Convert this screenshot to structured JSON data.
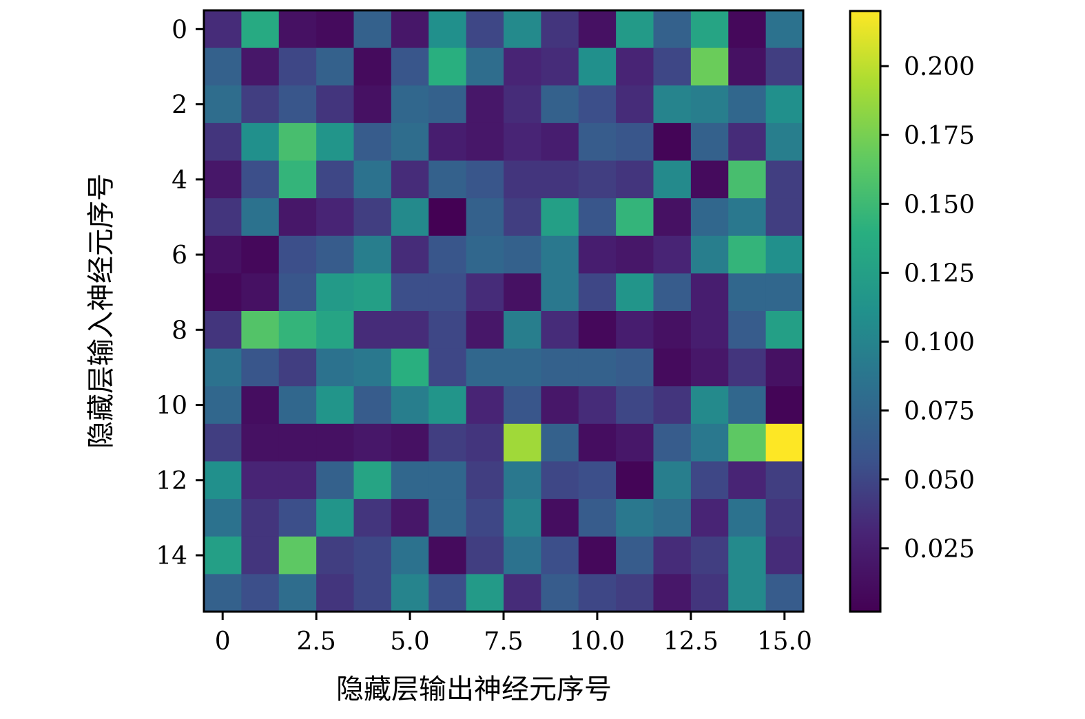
{
  "chart_data": {
    "type": "heatmap",
    "xlabel": "隐藏层输出神经元序号",
    "ylabel": "隐藏层输入神经元序号",
    "x_ticks": [
      0,
      2.5,
      5.0,
      7.5,
      10.0,
      12.5,
      15.0
    ],
    "x_tick_labels": [
      "0",
      "2.5",
      "5.0",
      "7.5",
      "10.0",
      "12.5",
      "15.0"
    ],
    "y_ticks": [
      0,
      2,
      4,
      6,
      8,
      10,
      12,
      14
    ],
    "y_tick_labels": [
      "0",
      "2",
      "4",
      "6",
      "8",
      "10",
      "12",
      "14"
    ],
    "xlim": [
      -0.5,
      15.5
    ],
    "ylim": [
      15.5,
      -0.5
    ],
    "colormap": "viridis",
    "colorbar": {
      "min": 0.002,
      "max": 0.22,
      "ticks": [
        0.025,
        0.05,
        0.075,
        0.1,
        0.125,
        0.15,
        0.175,
        0.2
      ],
      "tick_labels": [
        "0.025",
        "0.050",
        "0.075",
        "0.100",
        "0.125",
        "0.150",
        "0.175",
        "0.200"
      ]
    },
    "values": [
      [
        0.035,
        0.135,
        0.015,
        0.01,
        0.07,
        0.02,
        0.11,
        0.05,
        0.105,
        0.04,
        0.015,
        0.12,
        0.07,
        0.13,
        0.008,
        0.085
      ],
      [
        0.07,
        0.02,
        0.05,
        0.07,
        0.01,
        0.06,
        0.14,
        0.08,
        0.03,
        0.035,
        0.11,
        0.03,
        0.05,
        0.17,
        0.015,
        0.045
      ],
      [
        0.08,
        0.045,
        0.06,
        0.04,
        0.015,
        0.075,
        0.07,
        0.02,
        0.035,
        0.07,
        0.055,
        0.035,
        0.1,
        0.095,
        0.075,
        0.11
      ],
      [
        0.04,
        0.11,
        0.155,
        0.115,
        0.065,
        0.08,
        0.025,
        0.02,
        0.03,
        0.025,
        0.065,
        0.06,
        0.005,
        0.07,
        0.035,
        0.095
      ],
      [
        0.02,
        0.055,
        0.145,
        0.05,
        0.085,
        0.035,
        0.07,
        0.06,
        0.04,
        0.04,
        0.045,
        0.04,
        0.105,
        0.01,
        0.155,
        0.045
      ],
      [
        0.04,
        0.085,
        0.02,
        0.03,
        0.045,
        0.105,
        0.002,
        0.07,
        0.045,
        0.125,
        0.06,
        0.145,
        0.015,
        0.075,
        0.09,
        0.045
      ],
      [
        0.015,
        0.008,
        0.055,
        0.065,
        0.095,
        0.035,
        0.06,
        0.075,
        0.07,
        0.09,
        0.025,
        0.02,
        0.03,
        0.095,
        0.145,
        0.11
      ],
      [
        0.008,
        0.015,
        0.06,
        0.12,
        0.125,
        0.055,
        0.055,
        0.035,
        0.015,
        0.09,
        0.05,
        0.115,
        0.065,
        0.025,
        0.075,
        0.075
      ],
      [
        0.04,
        0.16,
        0.145,
        0.13,
        0.035,
        0.035,
        0.05,
        0.02,
        0.095,
        0.035,
        0.008,
        0.025,
        0.015,
        0.025,
        0.065,
        0.125
      ],
      [
        0.085,
        0.06,
        0.045,
        0.085,
        0.09,
        0.14,
        0.05,
        0.075,
        0.075,
        0.07,
        0.07,
        0.065,
        0.01,
        0.02,
        0.04,
        0.015
      ],
      [
        0.075,
        0.012,
        0.075,
        0.115,
        0.065,
        0.095,
        0.115,
        0.03,
        0.06,
        0.02,
        0.035,
        0.05,
        0.04,
        0.105,
        0.075,
        0.005
      ],
      [
        0.045,
        0.015,
        0.015,
        0.015,
        0.02,
        0.015,
        0.045,
        0.04,
        0.19,
        0.07,
        0.012,
        0.02,
        0.065,
        0.09,
        0.165,
        0.22
      ],
      [
        0.11,
        0.03,
        0.03,
        0.07,
        0.13,
        0.075,
        0.075,
        0.045,
        0.09,
        0.05,
        0.055,
        0.005,
        0.095,
        0.05,
        0.03,
        0.045
      ],
      [
        0.085,
        0.04,
        0.055,
        0.115,
        0.04,
        0.02,
        0.075,
        0.05,
        0.1,
        0.012,
        0.065,
        0.09,
        0.08,
        0.03,
        0.085,
        0.04
      ],
      [
        0.125,
        0.04,
        0.165,
        0.045,
        0.05,
        0.085,
        0.01,
        0.045,
        0.085,
        0.055,
        0.008,
        0.065,
        0.035,
        0.045,
        0.105,
        0.035
      ],
      [
        0.07,
        0.055,
        0.08,
        0.04,
        0.05,
        0.1,
        0.055,
        0.12,
        0.035,
        0.065,
        0.05,
        0.045,
        0.02,
        0.04,
        0.105,
        0.065
      ]
    ]
  }
}
